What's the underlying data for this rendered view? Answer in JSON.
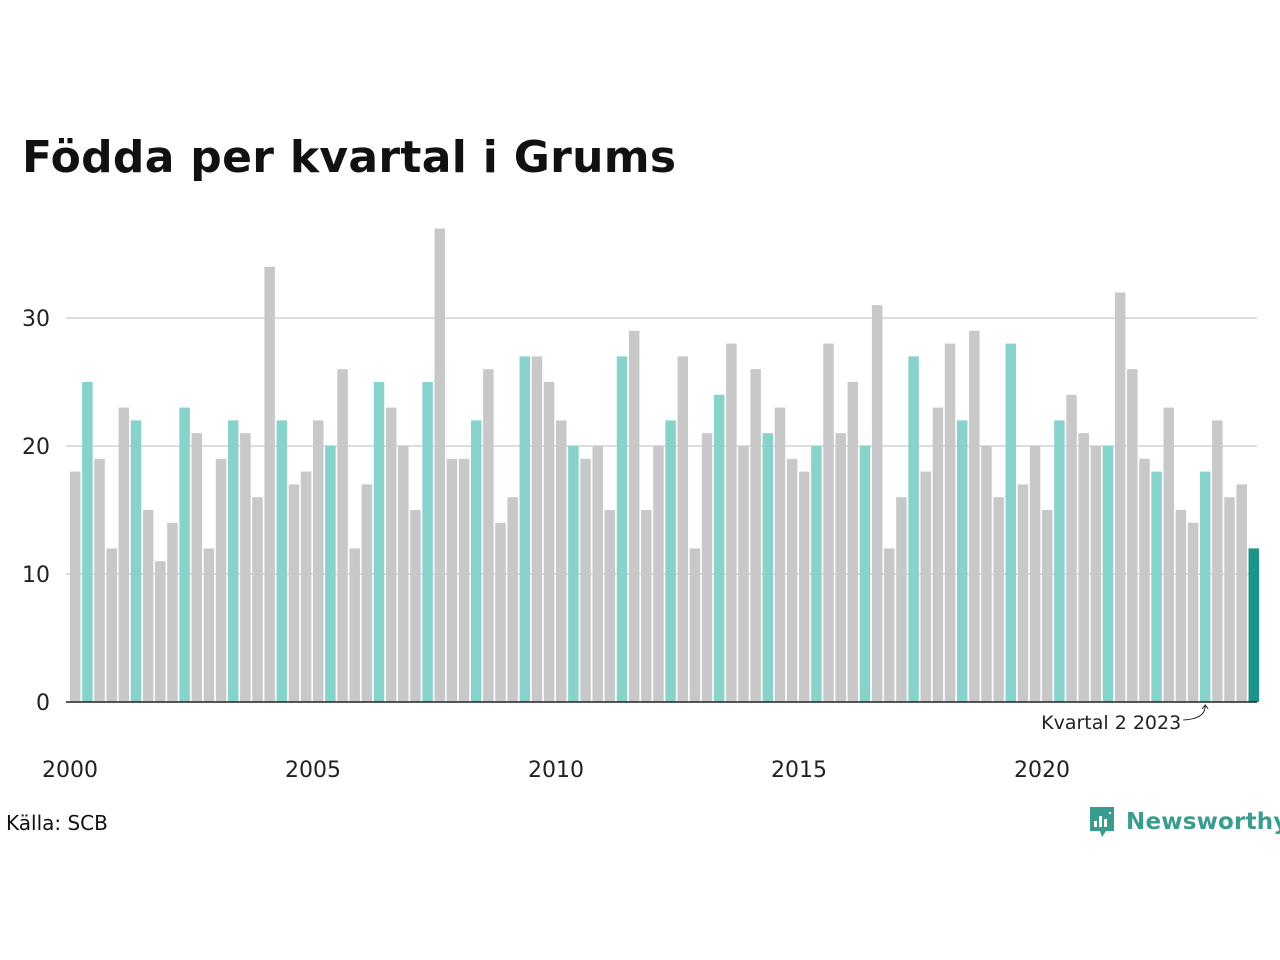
{
  "title": "Födda per kvartal i Grums",
  "source": "Källa: SCB",
  "brand": "Newsworthy",
  "colors": {
    "bar_default": "#c8c8c8",
    "bar_q2": "#87d3cb",
    "bar_latest": "#1c9489",
    "grid": "#dddddd",
    "axis": "#222222",
    "brand": "#3a9c8e"
  },
  "chart_data": {
    "type": "bar",
    "title": "Födda per kvartal i Grums",
    "xlabel": "",
    "ylabel": "",
    "ylim": [
      0,
      37
    ],
    "yticks": [
      0,
      10,
      20,
      30
    ],
    "xtick_labels": [
      "2000",
      "2005",
      "2010",
      "2015",
      "2020"
    ],
    "grid": true,
    "highlight": "Q2 of every year in teal; latest quarter in dark teal",
    "annotation": "Kvartal 2 2023",
    "categories": [
      "2000 Q1",
      "2000 Q2",
      "2000 Q3",
      "2000 Q4",
      "2001 Q1",
      "2001 Q2",
      "2001 Q3",
      "2001 Q4",
      "2002 Q1",
      "2002 Q2",
      "2002 Q3",
      "2002 Q4",
      "2003 Q1",
      "2003 Q2",
      "2003 Q3",
      "2003 Q4",
      "2004 Q1",
      "2004 Q2",
      "2004 Q3",
      "2004 Q4",
      "2005 Q1",
      "2005 Q2",
      "2005 Q3",
      "2005 Q4",
      "2006 Q1",
      "2006 Q2",
      "2006 Q3",
      "2006 Q4",
      "2007 Q1",
      "2007 Q2",
      "2007 Q3",
      "2007 Q4",
      "2008 Q1",
      "2008 Q2",
      "2008 Q3",
      "2008 Q4",
      "2009 Q1",
      "2009 Q2",
      "2009 Q3",
      "2009 Q4",
      "2010 Q1",
      "2010 Q2",
      "2010 Q3",
      "2010 Q4",
      "2011 Q1",
      "2011 Q2",
      "2011 Q3",
      "2011 Q4",
      "2012 Q1",
      "2012 Q2",
      "2012 Q3",
      "2012 Q4",
      "2013 Q1",
      "2013 Q2",
      "2013 Q3",
      "2013 Q4",
      "2014 Q1",
      "2014 Q2",
      "2014 Q3",
      "2014 Q4",
      "2015 Q1",
      "2015 Q2",
      "2015 Q3",
      "2015 Q4",
      "2016 Q1",
      "2016 Q2",
      "2016 Q3",
      "2016 Q4",
      "2017 Q1",
      "2017 Q2",
      "2017 Q3",
      "2017 Q4",
      "2018 Q1",
      "2018 Q2",
      "2018 Q3",
      "2018 Q4",
      "2019 Q1",
      "2019 Q2",
      "2019 Q3",
      "2019 Q4",
      "2020 Q1",
      "2020 Q2",
      "2020 Q3",
      "2020 Q4",
      "2021 Q1",
      "2021 Q2",
      "2021 Q3",
      "2021 Q4",
      "2022 Q1",
      "2022 Q2",
      "2022 Q3",
      "2022 Q4",
      "2023 Q1",
      "2023 Q2",
      "2023 Q3",
      "2023 Q4",
      "2024 Q1",
      "2024 Q2"
    ],
    "values": [
      18,
      25,
      19,
      12,
      23,
      22,
      15,
      11,
      14,
      23,
      21,
      12,
      19,
      22,
      21,
      16,
      34,
      22,
      17,
      18,
      22,
      20,
      26,
      12,
      17,
      25,
      23,
      20,
      15,
      25,
      37,
      19,
      19,
      22,
      26,
      14,
      16,
      27,
      27,
      25,
      22,
      20,
      19,
      20,
      15,
      27,
      29,
      15,
      20,
      22,
      27,
      12,
      21,
      24,
      28,
      20,
      26,
      21,
      23,
      19,
      18,
      20,
      28,
      21,
      25,
      20,
      31,
      12,
      16,
      27,
      18,
      23,
      28,
      22,
      29,
      20,
      16,
      28,
      17,
      20,
      15,
      22,
      24,
      21,
      20,
      20,
      32,
      26,
      19,
      18,
      23,
      15,
      14,
      18,
      22,
      16,
      17,
      12
    ]
  }
}
